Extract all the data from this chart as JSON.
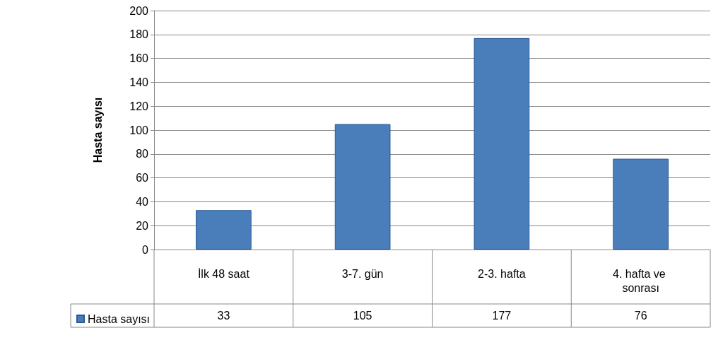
{
  "chart_data": {
    "type": "bar",
    "ylabel": "Hasta sayısı",
    "categories": [
      "İlk 48 saat",
      "3-7. gün",
      "2-3. hafta",
      "4. hafta ve sonrası"
    ],
    "series": [
      {
        "name": "Hasta sayısı",
        "color": "#4a7ebb",
        "values": [
          33,
          105,
          177,
          76
        ]
      }
    ],
    "ylim": [
      0,
      200
    ],
    "yticks": [
      0,
      20,
      40,
      60,
      80,
      100,
      120,
      140,
      160,
      180,
      200
    ],
    "grid": "y",
    "legend": "bottom left",
    "data_labels": true
  }
}
